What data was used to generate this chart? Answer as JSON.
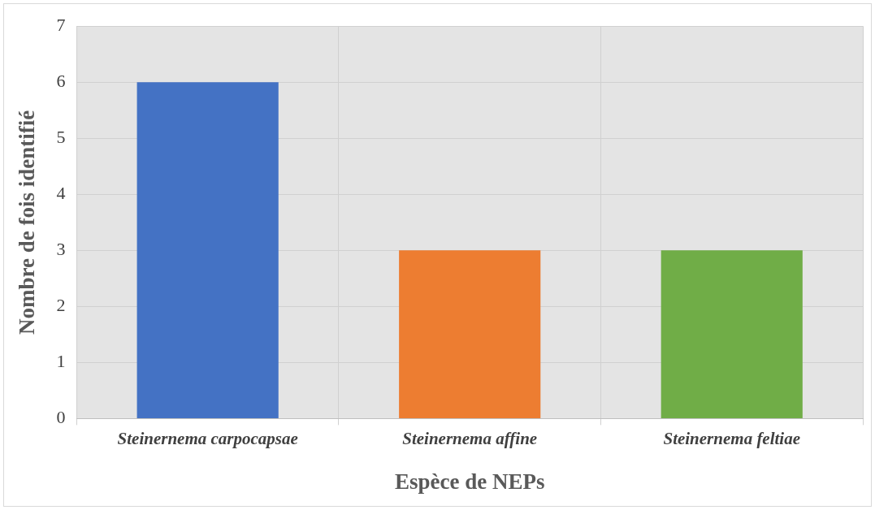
{
  "chart_data": {
    "type": "bar",
    "xlabel": "Espèce de NEPs",
    "ylabel": "Nombre de fois identifié",
    "categories": [
      "Steinernema carpocapsae",
      "Steinernema affine",
      "Steinernema feltiae"
    ],
    "values": [
      6,
      3,
      3
    ],
    "colors": [
      "#4472c4",
      "#ed7d31",
      "#70ad47"
    ],
    "ylim": [
      0,
      7
    ],
    "yticks": [
      0,
      1,
      2,
      3,
      4,
      5,
      6,
      7
    ],
    "grid": true,
    "legend": false
  }
}
